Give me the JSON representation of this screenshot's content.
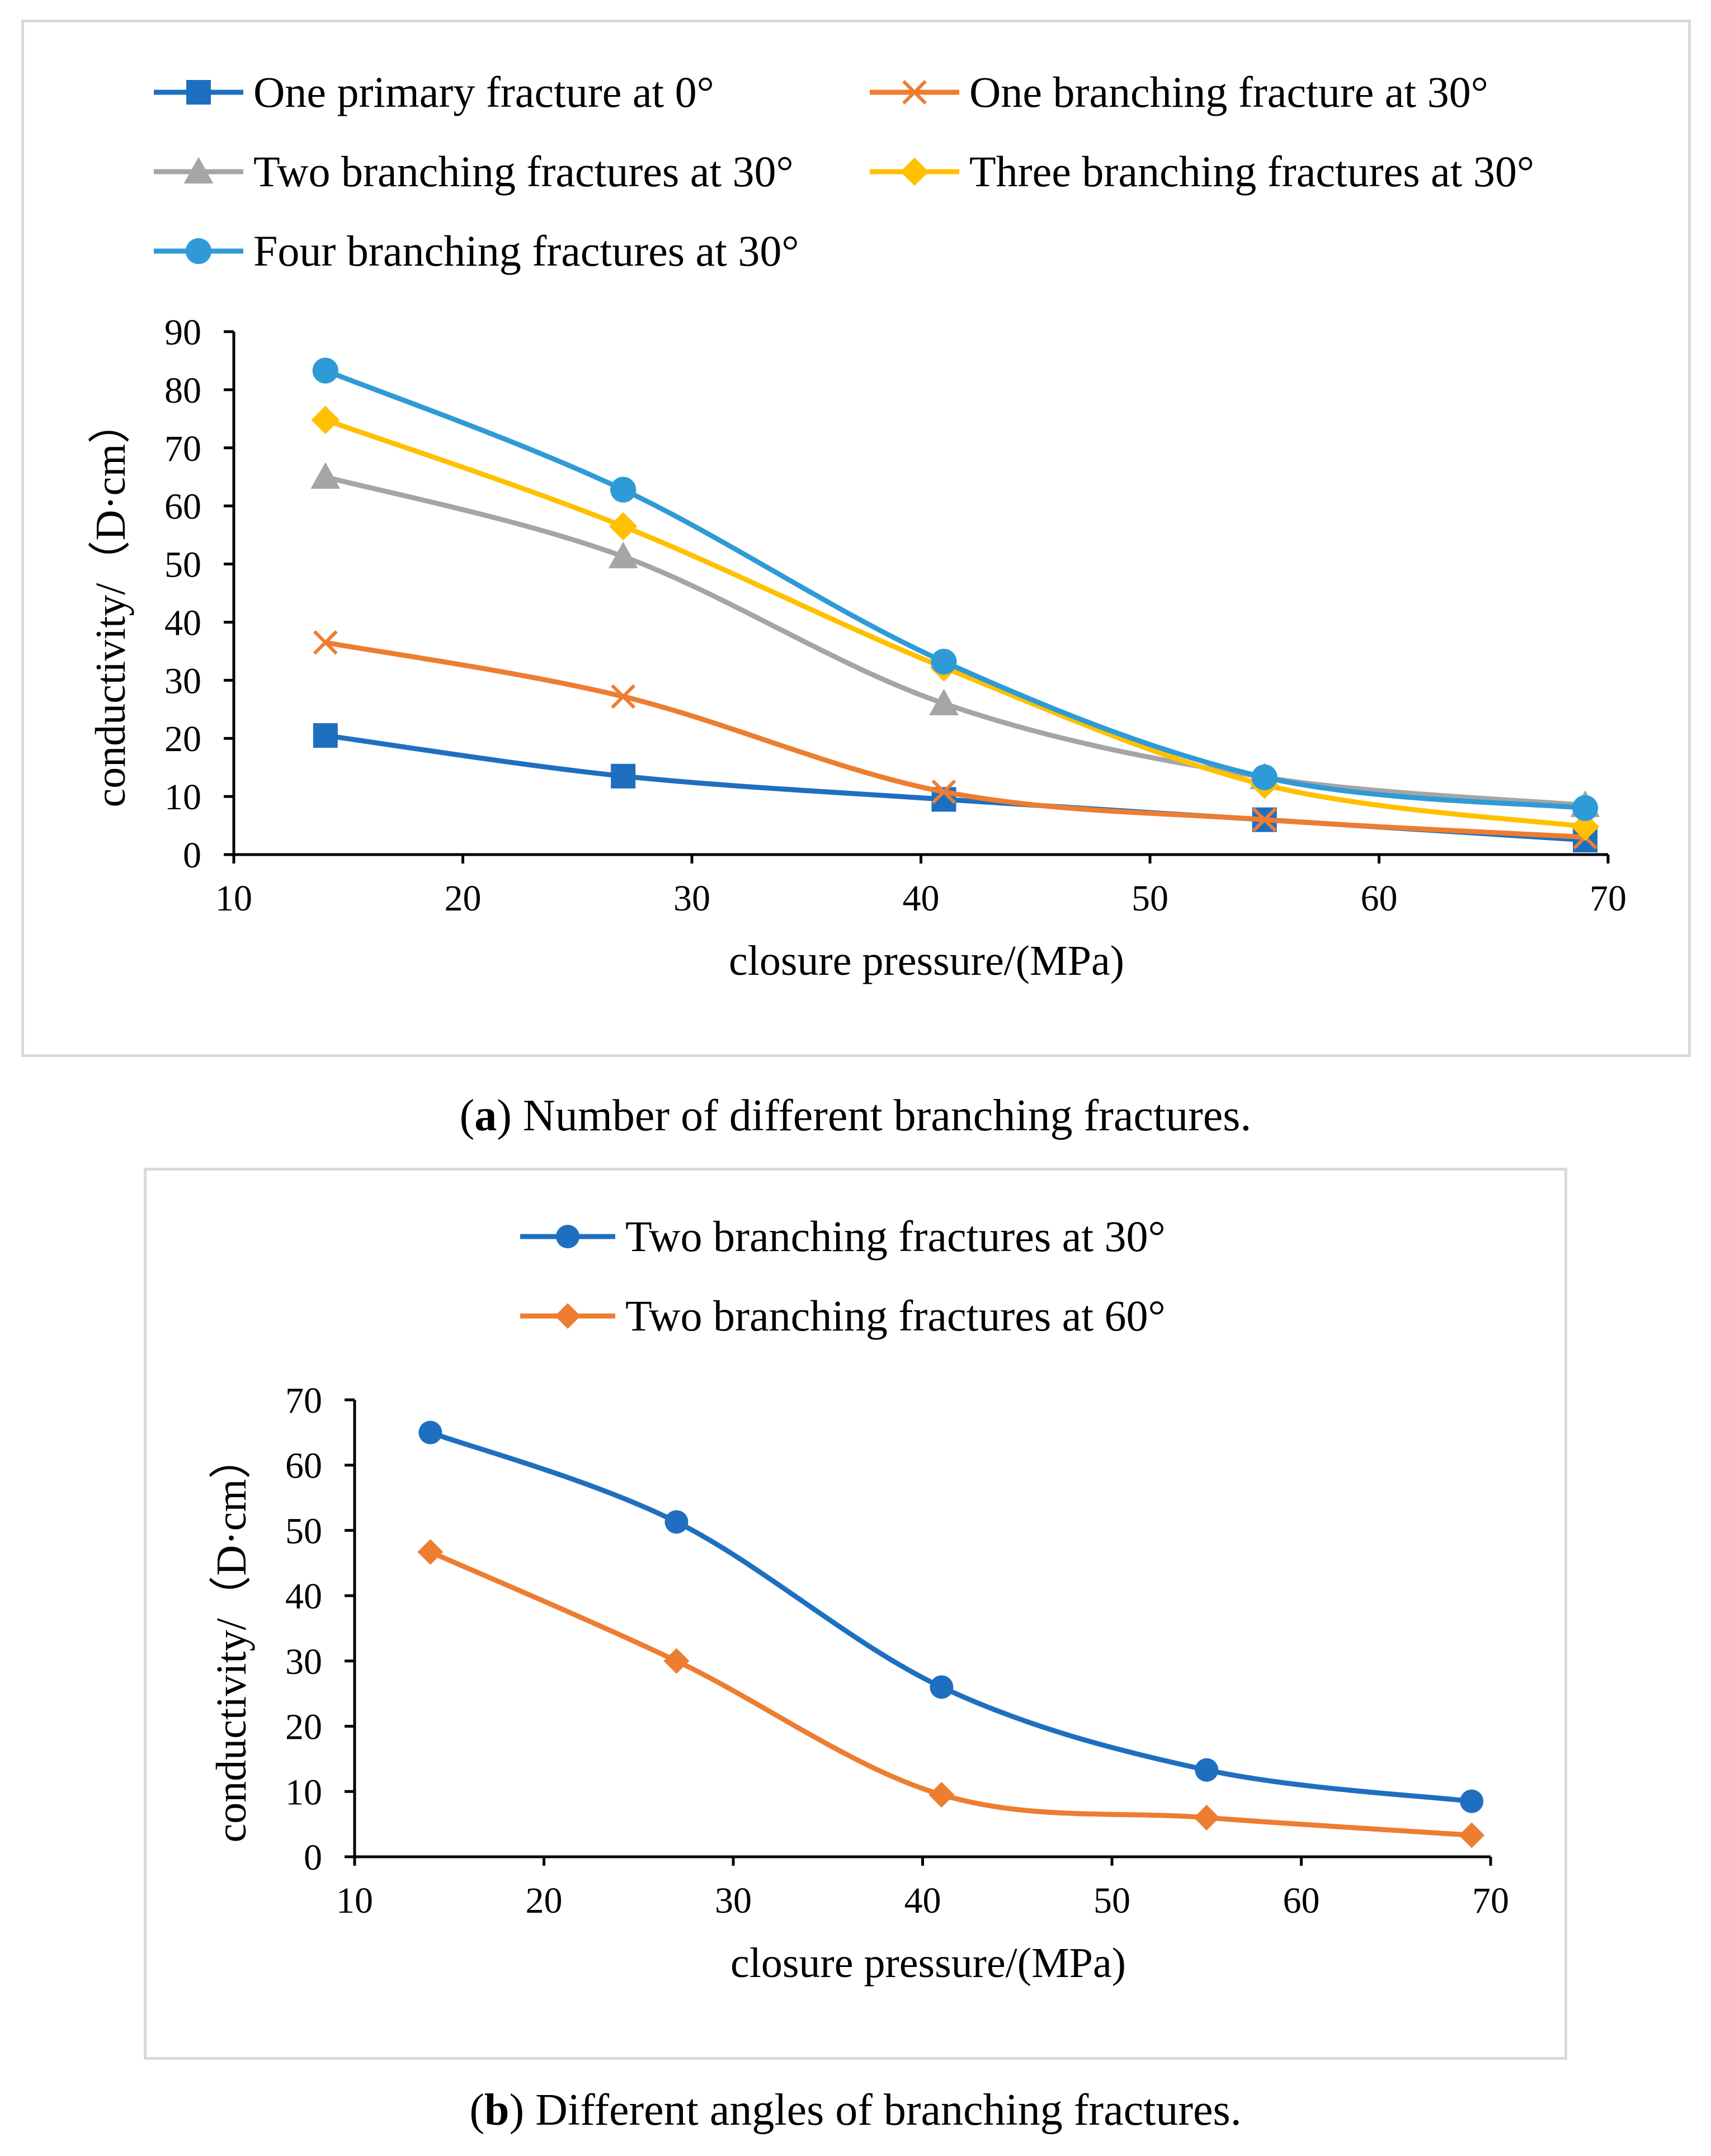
{
  "panels": [
    {
      "caption_letter": "a",
      "caption_text": " Number of different branching fractures.",
      "chart_data": {
        "type": "line",
        "xlabel": "closure pressure/(MPa)",
        "ylabel": "conductivity/（D·cm）",
        "xlim": [
          10,
          70
        ],
        "ylim": [
          0,
          90
        ],
        "xticks": [
          10,
          20,
          30,
          40,
          50,
          60,
          70
        ],
        "yticks": [
          0,
          10,
          20,
          30,
          40,
          50,
          60,
          70,
          80,
          90
        ],
        "x": [
          14,
          27,
          41,
          55,
          69
        ],
        "series": [
          {
            "name": "One primary fracture at 0°",
            "values": [
              20.5,
              13.5,
              9.5,
              6,
              2.5
            ],
            "color": "#1f6fc0",
            "marker": "square"
          },
          {
            "name": "One branching fracture at 30°",
            "values": [
              36.5,
              27.2,
              10.8,
              6,
              3
            ],
            "color": "#ed7d31",
            "marker": "x"
          },
          {
            "name": "Two branching fractures at 30°",
            "values": [
              65,
              51.3,
              26,
              13.3,
              8.5
            ],
            "color": "#a5a5a5",
            "marker": "triangle"
          },
          {
            "name": "Three branching fractures at 30°",
            "values": [
              74.8,
              56.5,
              32.2,
              12,
              4.8
            ],
            "color": "#ffc000",
            "marker": "diamond"
          },
          {
            "name": "Four branching fractures at 30°",
            "values": [
              83.3,
              62.8,
              33.2,
              13.3,
              8
            ],
            "color": "#2e9bd6",
            "marker": "circle"
          }
        ]
      }
    },
    {
      "caption_letter": "b",
      "caption_text": " Different angles of branching fractures.",
      "chart_data": {
        "type": "line",
        "xlabel": "closure pressure/(MPa)",
        "ylabel": "conductivity/（D·cm）",
        "xlim": [
          10,
          70
        ],
        "ylim": [
          0,
          70
        ],
        "xticks": [
          10,
          20,
          30,
          40,
          50,
          60,
          70
        ],
        "yticks": [
          0,
          10,
          20,
          30,
          40,
          50,
          60,
          70
        ],
        "x": [
          14,
          27,
          41,
          55,
          69
        ],
        "series": [
          {
            "name": "Two branching fractures at 30°",
            "values": [
              65,
              51.3,
              26,
              13.3,
              8.5
            ],
            "color": "#1f6fc0",
            "marker": "circle"
          },
          {
            "name": "Two branching fractures at 60°",
            "values": [
              46.7,
              30,
              9.5,
              6,
              3.3
            ],
            "color": "#ed7d31",
            "marker": "diamond"
          }
        ]
      }
    }
  ]
}
